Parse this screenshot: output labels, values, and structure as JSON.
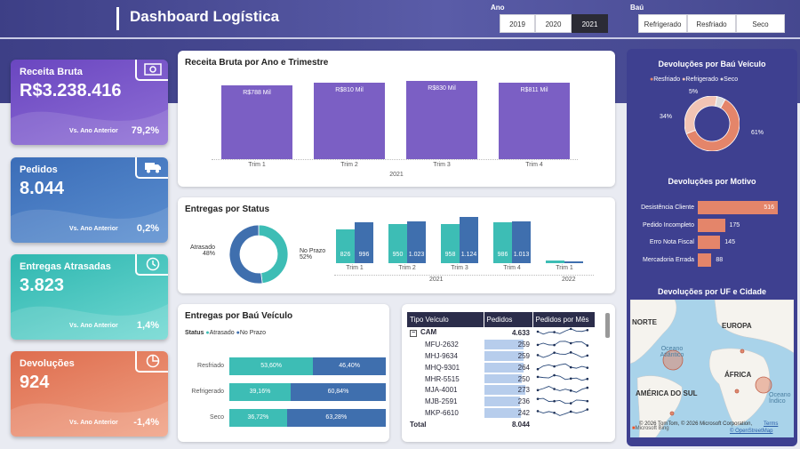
{
  "header": {
    "title": "Dashboard Logística"
  },
  "filters": {
    "ano_label": "Ano",
    "anos": [
      "2019",
      "2020",
      "2021"
    ],
    "ano_selected": "2021",
    "bau_label": "Baú",
    "baus": [
      "Refrigerado",
      "Resfriado",
      "Seco"
    ]
  },
  "kpis": [
    {
      "title": "Receita Bruta",
      "value": "R$3.238.416",
      "label": "Vs. Ano Anterior",
      "pct": "79,2%",
      "icon": "money-icon"
    },
    {
      "title": "Pedidos",
      "value": "8.044",
      "label": "Vs. Ano Anterior",
      "pct": "0,2%",
      "icon": "truck-icon"
    },
    {
      "title": "Entregas Atrasadas",
      "value": "3.823",
      "label": "Vs. Ano Anterior",
      "pct": "1,4%",
      "icon": "clock-icon"
    },
    {
      "title": "Devoluções",
      "value": "924",
      "label": "Vs. Ano Anterior",
      "pct": "-1,4%",
      "icon": "pie-icon"
    }
  ],
  "colors": {
    "purple": "#7b5fc4",
    "teal": "#3dbdb5",
    "blue": "#3f6fae",
    "salmon": "#e4856a"
  },
  "chart_data": [
    {
      "type": "bar",
      "title": "Receita Bruta por Ano e Trimestre",
      "categories": [
        "Trim 1",
        "Trim 2",
        "Trim 3",
        "Trim 4"
      ],
      "group_label": "2021",
      "values": [
        788,
        810,
        830,
        811
      ],
      "data_labels": [
        "R$788 Mil",
        "R$810 Mil",
        "R$830 Mil",
        "R$811 Mil"
      ]
    },
    {
      "type": "pie",
      "title": "Entregas por Status",
      "slices": [
        {
          "name": "Atrasado",
          "value": 48,
          "label": "48%"
        },
        {
          "name": "No Prazo",
          "value": 52,
          "label": "52%"
        }
      ]
    },
    {
      "type": "bar",
      "title": "",
      "categories": [
        "Trim 1",
        "Trim 2",
        "Trim 3",
        "Trim 4",
        "Trim 1"
      ],
      "groups": [
        {
          "label": "2021",
          "from": 0,
          "to": 3
        },
        {
          "label": "2022",
          "from": 4,
          "to": 4
        }
      ],
      "series": [
        {
          "name": "Atrasado",
          "values": [
            826,
            950,
            958,
            986,
            60
          ],
          "labels": [
            "826",
            "950",
            "958",
            "986",
            ""
          ]
        },
        {
          "name": "No Prazo",
          "values": [
            996,
            1023,
            1124,
            1013,
            50
          ],
          "labels": [
            "996",
            "1.023",
            "1.124",
            "1.013",
            ""
          ]
        }
      ]
    },
    {
      "type": "bar",
      "title": "Entregas por Baú Veículo",
      "legend_title": "Status",
      "categories": [
        "Resfriado",
        "Refrigerado",
        "Seco"
      ],
      "series": [
        {
          "name": "Atrasado",
          "values": [
            53.6,
            39.16,
            36.72
          ],
          "labels": [
            "53,60%",
            "39,16%",
            "36,72%"
          ]
        },
        {
          "name": "No Prazo",
          "values": [
            46.4,
            60.84,
            63.28
          ],
          "labels": [
            "46,40%",
            "60,84%",
            "63,28%"
          ]
        }
      ]
    },
    {
      "type": "pie",
      "title": "Devoluções por Baú Veículo",
      "slices": [
        {
          "name": "Resfriado",
          "value": 61,
          "label": "61%"
        },
        {
          "name": "Refrigerado",
          "value": 34,
          "label": "34%"
        },
        {
          "name": "Seco",
          "value": 5,
          "label": "5%"
        }
      ]
    },
    {
      "type": "bar",
      "title": "Devoluções por Motivo",
      "categories": [
        "Desistência Cliente",
        "Pedido Incompleto",
        "Erro Nota Fiscal",
        "Mercadoria Errada"
      ],
      "values": [
        516,
        175,
        145,
        88
      ],
      "labels": [
        "516",
        "175",
        "145",
        "88"
      ]
    }
  ],
  "table": {
    "headers": [
      "Tipo Veículo",
      "Pedidos",
      "Pedidos por Mês"
    ],
    "group": {
      "name": "CAM",
      "value": "4.633"
    },
    "rows": [
      {
        "name": "MFU-2632",
        "value": "259",
        "n": 259
      },
      {
        "name": "MHJ-9634",
        "value": "259",
        "n": 259
      },
      {
        "name": "MHQ-9301",
        "value": "264",
        "n": 264
      },
      {
        "name": "MHR-5515",
        "value": "250",
        "n": 250
      },
      {
        "name": "MJA-4001",
        "value": "273",
        "n": 273
      },
      {
        "name": "MJB-2591",
        "value": "236",
        "n": 236
      },
      {
        "name": "MKP-6610",
        "value": "242",
        "n": 242
      }
    ],
    "total_label": "Total",
    "total_value": "8.044"
  },
  "map": {
    "title": "Devoluções por UF e Cidade",
    "labels": [
      "NORTE",
      "EUROPA",
      "Oceano Atlântico",
      "ÁFRICA",
      "AMÉRICA DO SUL",
      "Oceano Índico"
    ],
    "attribution": "© 2026 TomTom, © 2026 Microsoft Corporation,",
    "terms": "Terms",
    "osm": "© OpenStreetMap",
    "bing": "Microsoft Bing"
  }
}
